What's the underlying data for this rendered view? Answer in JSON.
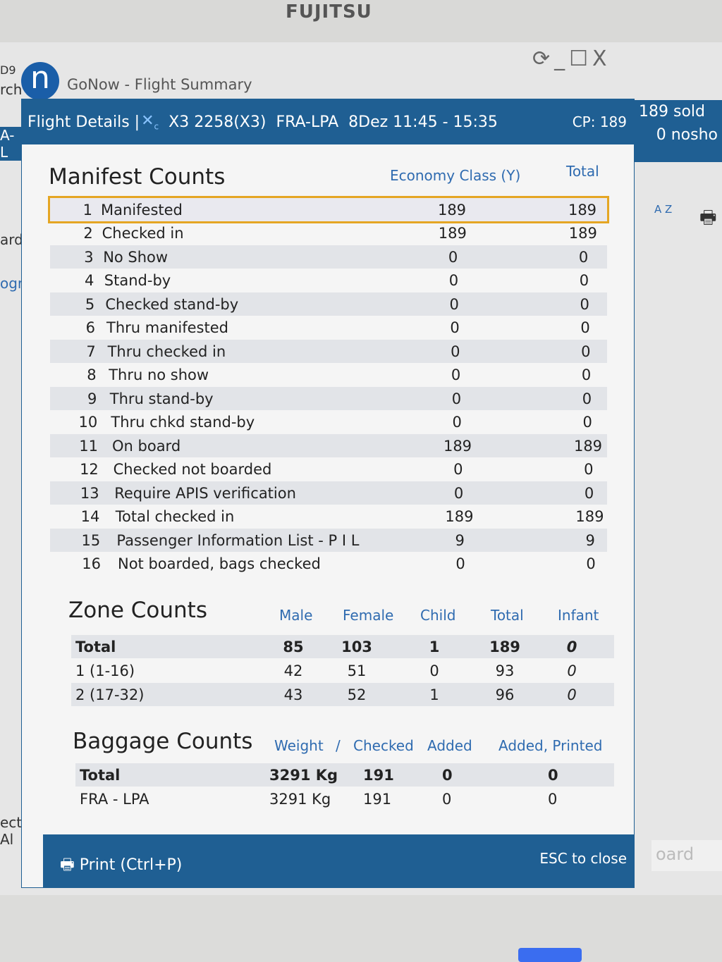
{
  "monitor_brand": "FUJITSU",
  "app": {
    "logo": "n",
    "title": "GoNow - Flight Summary",
    "controls": [
      "⟳",
      "_",
      "☐",
      "X"
    ]
  },
  "background": {
    "left_fragments": [
      "D9",
      "rch",
      "A-L",
      "ard",
      "ogra",
      "ect Al"
    ],
    "right": {
      "sold": "189 sold",
      "noshow": "0 nosho",
      "sort_label": "A Z",
      "board": "oard"
    }
  },
  "header": {
    "label": "Flight Details |",
    "airline_icon": "airline-logo-icon",
    "flight": "X3 2258(X3)",
    "route": "FRA-LPA",
    "date_time": "8Dez 11:45 - 15:35",
    "cp": "CP: 189"
  },
  "manifest": {
    "title": "Manifest Counts",
    "columns": [
      "Economy Class (Y)",
      "Total"
    ],
    "rows": [
      [
        "1",
        "Manifested",
        "189",
        "189"
      ],
      [
        "2",
        "Checked in",
        "189",
        "189"
      ],
      [
        "3",
        "No Show",
        "0",
        "0"
      ],
      [
        "4",
        "Stand-by",
        "0",
        "0"
      ],
      [
        "5",
        "Checked stand-by",
        "0",
        "0"
      ],
      [
        "6",
        "Thru manifested",
        "0",
        "0"
      ],
      [
        "7",
        "Thru checked in",
        "0",
        "0"
      ],
      [
        "8",
        "Thru no show",
        "0",
        "0"
      ],
      [
        "9",
        "Thru stand-by",
        "0",
        "0"
      ],
      [
        "10",
        "Thru chkd stand-by",
        "0",
        "0"
      ],
      [
        "11",
        "On board",
        "189",
        "189"
      ],
      [
        "12",
        "Checked not boarded",
        "0",
        "0"
      ],
      [
        "13",
        "Require APIS verification",
        "0",
        "0"
      ],
      [
        "14",
        "Total checked in",
        "189",
        "189"
      ],
      [
        "15",
        "Passenger Information List - P I L",
        "9",
        "9"
      ],
      [
        "16",
        "Not boarded, bags checked",
        "0",
        "0"
      ]
    ],
    "selected_row": 0
  },
  "zone": {
    "title": "Zone Counts",
    "columns": [
      "Male",
      "Female",
      "Child",
      "Total",
      "Infant"
    ],
    "rows": [
      [
        "Total",
        "85",
        "103",
        "1",
        "189",
        "0"
      ],
      [
        "1 (1-16)",
        "42",
        "51",
        "0",
        "93",
        "0"
      ],
      [
        "2 (17-32)",
        "43",
        "52",
        "1",
        "96",
        "0"
      ]
    ]
  },
  "baggage": {
    "title": "Baggage Counts",
    "columns": [
      "Weight",
      "/",
      "Checked",
      "Added",
      "Added, Printed"
    ],
    "rows": [
      [
        "Total",
        "3291 Kg",
        "191",
        "0",
        "0"
      ],
      [
        "FRA - LPA",
        "3291 Kg",
        "191",
        "0",
        "0"
      ]
    ]
  },
  "footer": {
    "print": "Print (Ctrl+P)",
    "esc": "ESC to close"
  },
  "colors": {
    "accent": "#1f5f93",
    "selection": "#e5a623",
    "header_text": "#2f6bb0"
  }
}
